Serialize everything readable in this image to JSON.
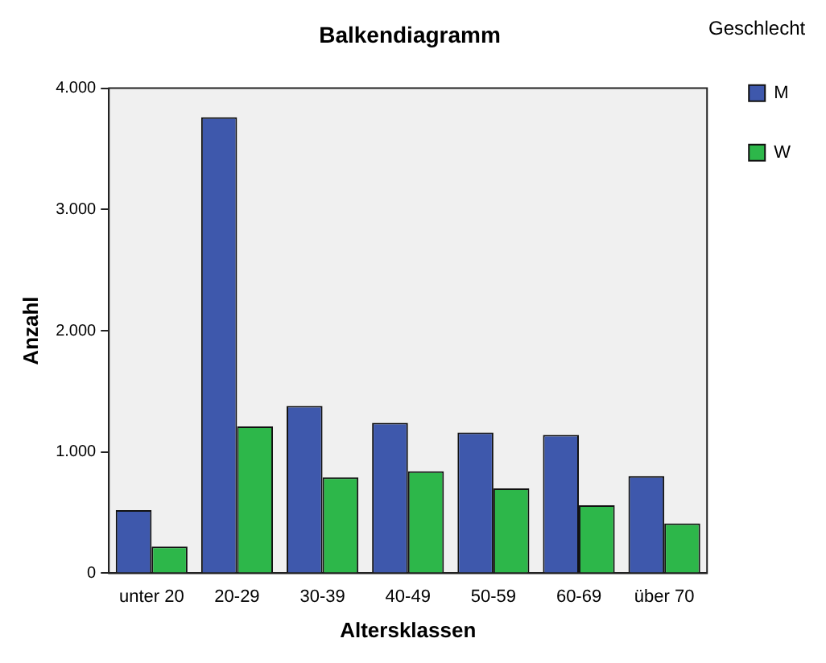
{
  "chart_data": {
    "type": "bar",
    "title": "Balkendiagramm",
    "xlabel": "Altersklassen",
    "ylabel": "Anzahl",
    "legend_title": "Geschlecht",
    "legend": "top right",
    "grid": false,
    "categories": [
      "unter 20",
      "20-29",
      "30-39",
      "40-49",
      "50-59",
      "60-69",
      "über 70"
    ],
    "series": [
      {
        "name": "M",
        "color": "#3e58ac",
        "values": [
          520,
          3760,
          1380,
          1240,
          1160,
          1140,
          800
        ]
      },
      {
        "name": "W",
        "color": "#2db74a",
        "values": [
          220,
          1210,
          790,
          840,
          700,
          560,
          410
        ]
      }
    ],
    "ylim": [
      0,
      4000
    ],
    "yticks": [
      0,
      {
        "value": 1000,
        "label": "1.000"
      },
      {
        "value": 2000,
        "label": "2.000"
      },
      {
        "value": 3000,
        "label": "3.000"
      },
      {
        "value": 4000,
        "label": "4.000"
      }
    ]
  }
}
